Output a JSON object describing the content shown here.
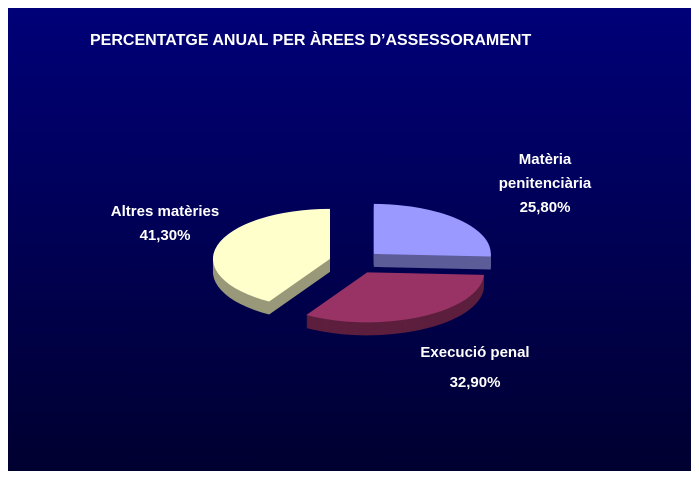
{
  "chart_data": {
    "type": "pie",
    "title": "PERCENTATGE ANUAL PER ÀREES D’ASSESSORAMENT",
    "categories": [
      "Matèria penitenciària",
      "Execució penal",
      "Altres matèries"
    ],
    "values": [
      25.8,
      32.9,
      41.3
    ],
    "value_labels": [
      "25,80%",
      "32,90%",
      "41,30%"
    ],
    "colors": [
      "#9999ff",
      "#993366",
      "#ffffcc"
    ]
  }
}
